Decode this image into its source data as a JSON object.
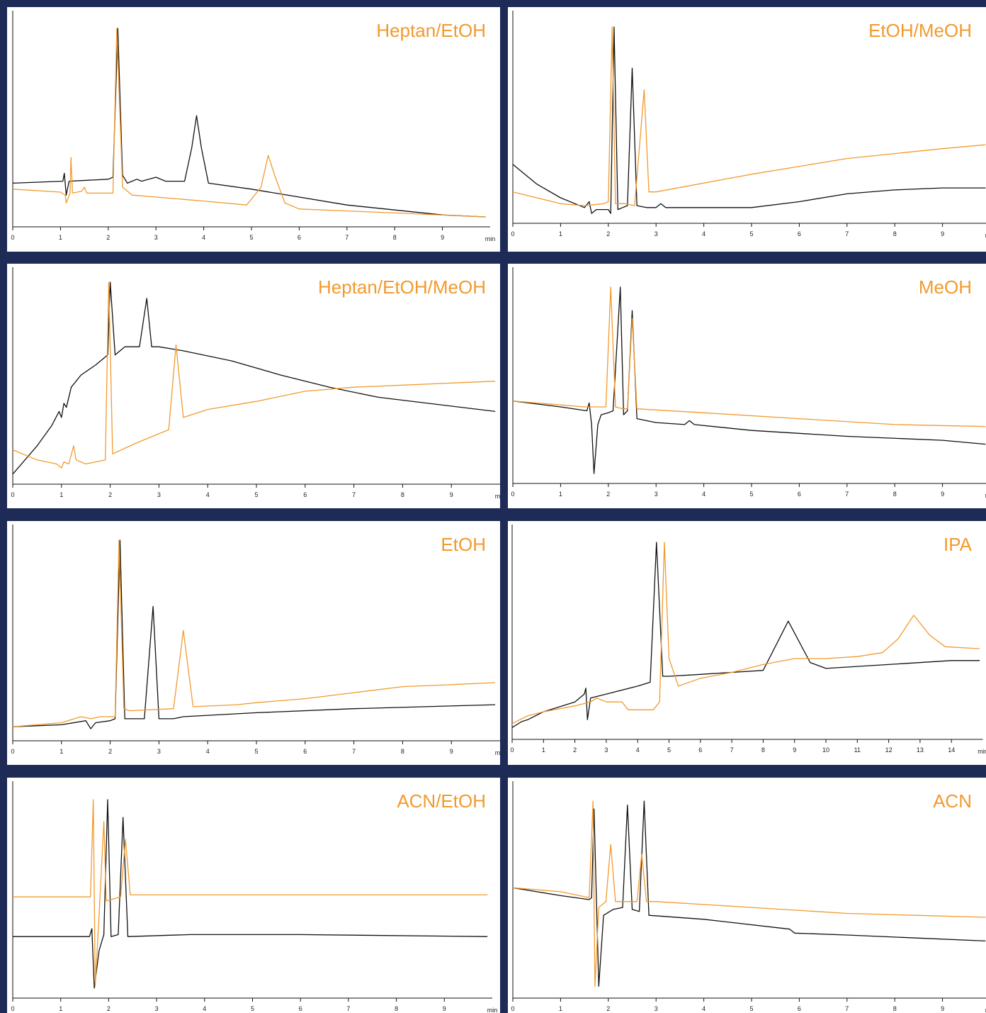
{
  "chart_data": [
    {
      "type": "line",
      "title": "Heptan/EtOH",
      "x_label": "min",
      "xlim": [
        0,
        10
      ],
      "xticks": [
        0,
        1,
        2,
        3,
        4,
        5,
        6,
        7,
        8,
        9
      ],
      "ylim": [
        0,
        100
      ],
      "series": [
        {
          "color": "#111111",
          "x": [
            0,
            1.05,
            1.08,
            1.12,
            1.18,
            2.0,
            2.1,
            2.2,
            2.3,
            2.4,
            2.6,
            2.7,
            3.0,
            3.2,
            3.6,
            3.75,
            3.85,
            3.95,
            4.1,
            5,
            7,
            9,
            9.9
          ],
          "values": [
            22,
            23,
            27,
            16,
            23,
            24,
            25,
            100,
            26,
            22,
            24,
            23,
            25,
            23,
            23,
            40,
            56,
            40,
            22,
            19,
            11,
            6,
            5
          ]
        },
        {
          "color": "#f29a2e",
          "x": [
            0,
            1,
            1.1,
            1.12,
            1.2,
            1.22,
            1.25,
            1.45,
            1.5,
            1.55,
            2.0,
            2.1,
            2.18,
            2.3,
            2.5,
            3,
            4,
            4.9,
            5.2,
            5.35,
            5.5,
            5.7,
            6,
            8,
            9.9
          ],
          "values": [
            19,
            17.5,
            16,
            12,
            17,
            35,
            17,
            18,
            20,
            17,
            17,
            17,
            100,
            20,
            16,
            15,
            13,
            11,
            20,
            36,
            25,
            12,
            9,
            7,
            5
          ]
        }
      ]
    },
    {
      "type": "line",
      "title": "EtOH/MeOH",
      "x_label": "min",
      "xlim": [
        0,
        10
      ],
      "xticks": [
        0,
        1,
        2,
        3,
        4,
        5,
        6,
        7,
        8,
        9
      ],
      "ylim": [
        0,
        100
      ],
      "series": [
        {
          "color": "#111111",
          "x": [
            0,
            0.5,
            1,
            1.5,
            1.6,
            1.65,
            1.75,
            2.0,
            2.05,
            2.12,
            2.2,
            2.3,
            2.4,
            2.5,
            2.6,
            2.8,
            3.0,
            3.1,
            3.2,
            4,
            5,
            6,
            7,
            8,
            9,
            9.9
          ],
          "values": [
            30,
            20,
            13,
            8,
            11,
            5,
            7,
            7,
            5,
            100,
            7,
            8,
            9,
            79,
            9,
            8,
            8,
            10,
            8,
            8,
            8,
            11,
            15,
            17,
            18,
            18
          ]
        },
        {
          "color": "#f29a2e",
          "x": [
            0,
            1,
            1.5,
            1.9,
            2.0,
            2.08,
            2.15,
            2.35,
            2.55,
            2.75,
            2.85,
            3,
            5,
            7,
            9,
            9.9
          ],
          "values": [
            16,
            10,
            9,
            10,
            11,
            100,
            10,
            10,
            9,
            68,
            16,
            16,
            25,
            33,
            38,
            40
          ]
        }
      ]
    },
    {
      "type": "line",
      "title": "Heptan/EtOH/MeOH",
      "x_label": "min",
      "xlim": [
        0,
        10
      ],
      "xticks": [
        0,
        1,
        2,
        3,
        4,
        5,
        6,
        7,
        8,
        9
      ],
      "ylim": [
        0,
        100
      ],
      "series": [
        {
          "color": "#111111",
          "x": [
            0,
            0.5,
            0.8,
            0.95,
            1.0,
            1.05,
            1.1,
            1.2,
            1.4,
            1.7,
            1.95,
            2.0,
            2.1,
            2.3,
            2.6,
            2.75,
            2.85,
            3,
            3.5,
            4.5,
            5.5,
            6.5,
            7.5,
            9.9
          ],
          "values": [
            5,
            19,
            29,
            36,
            33,
            40,
            38,
            48,
            54,
            59,
            64,
            100,
            64,
            68,
            68,
            92,
            68,
            68,
            66,
            61,
            54,
            48,
            43,
            36
          ]
        },
        {
          "color": "#f29a2e",
          "x": [
            0,
            0.5,
            0.9,
            1.0,
            1.05,
            1.15,
            1.25,
            1.3,
            1.5,
            1.9,
            1.97,
            2.05,
            2.5,
            3.2,
            3.35,
            3.5,
            4,
            5,
            6,
            7,
            8,
            9.9
          ],
          "values": [
            17,
            12,
            10,
            8,
            11,
            10,
            19,
            12,
            10,
            12,
            100,
            15,
            20,
            27,
            69,
            33,
            37,
            41,
            46,
            48,
            49,
            51
          ]
        }
      ]
    },
    {
      "type": "line",
      "title": "MeOH",
      "x_label": "min",
      "xlim": [
        0,
        10
      ],
      "xticks": [
        0,
        1,
        2,
        3,
        4,
        5,
        6,
        7,
        8,
        9
      ],
      "ylim": [
        0,
        100
      ],
      "series": [
        {
          "color": "#111111",
          "x": [
            0,
            1,
            1.55,
            1.6,
            1.65,
            1.7,
            1.78,
            1.85,
            2.0,
            2.1,
            2.25,
            2.32,
            2.4,
            2.5,
            2.6,
            3,
            3.6,
            3.7,
            3.8,
            5,
            7,
            9,
            9.9
          ],
          "values": [
            42,
            39,
            37,
            41,
            30,
            5,
            30,
            35,
            36,
            37,
            100,
            35,
            37,
            88,
            33,
            31,
            30,
            32,
            30,
            27,
            24,
            22,
            20
          ]
        },
        {
          "color": "#f29a2e",
          "x": [
            0,
            1,
            1.5,
            1.95,
            2.05,
            2.15,
            2.3,
            2.4,
            2.5,
            2.6,
            4,
            6,
            8,
            9.9
          ],
          "values": [
            42,
            40,
            39,
            39,
            100,
            39,
            38,
            38,
            84,
            38,
            36,
            33,
            30,
            29
          ]
        }
      ]
    },
    {
      "type": "line",
      "title": "EtOH",
      "x_label": "min",
      "xlim": [
        0,
        10
      ],
      "xticks": [
        0,
        1,
        2,
        3,
        4,
        5,
        6,
        7,
        8,
        9
      ],
      "ylim": [
        0,
        100
      ],
      "series": [
        {
          "color": "#111111",
          "x": [
            0,
            1,
            1.5,
            1.6,
            1.7,
            2.0,
            2.1,
            2.2,
            2.3,
            2.7,
            2.88,
            3.0,
            3.3,
            3.5,
            5,
            7,
            9.9
          ],
          "values": [
            7,
            8,
            10,
            6,
            9,
            10,
            11,
            100,
            11,
            11,
            67,
            11,
            11,
            12,
            14,
            16,
            18
          ]
        },
        {
          "color": "#f29a2e",
          "x": [
            0,
            1,
            1.4,
            1.6,
            1.8,
            2.1,
            2.18,
            2.28,
            2.4,
            3.3,
            3.5,
            3.7,
            4.6,
            5,
            6,
            7,
            8,
            9,
            9.9
          ],
          "values": [
            7,
            9,
            12,
            11,
            12,
            12,
            100,
            16,
            15,
            16,
            55,
            17,
            18,
            19,
            21,
            24,
            27,
            28,
            29
          ]
        }
      ]
    },
    {
      "type": "line",
      "title": "IPA",
      "x_label": "min",
      "xlim": [
        0,
        15
      ],
      "xticks": [
        0,
        1,
        2,
        3,
        4,
        5,
        6,
        7,
        8,
        9,
        10,
        11,
        12,
        13,
        14
      ],
      "ylim": [
        0,
        100
      ],
      "series": [
        {
          "color": "#111111",
          "x": [
            0,
            0.3,
            0.5,
            1,
            2,
            2.3,
            2.35,
            2.4,
            2.5,
            3,
            4,
            4.4,
            4.6,
            4.8,
            5,
            6,
            7,
            8,
            8.8,
            9.5,
            10,
            12,
            14,
            14.9
          ],
          "values": [
            6,
            9,
            10,
            14,
            19,
            23,
            26,
            10,
            21,
            23,
            27,
            29,
            100,
            32,
            32,
            33,
            34,
            35,
            60,
            39,
            36,
            38,
            40,
            40
          ]
        },
        {
          "color": "#f29a2e",
          "x": [
            0,
            0.5,
            1,
            2,
            2.5,
            2.7,
            3,
            3.5,
            3.7,
            4.5,
            4.7,
            4.85,
            5,
            5.3,
            6,
            7,
            8,
            9,
            10,
            11,
            11.8,
            12.3,
            12.8,
            13.3,
            13.8,
            14.9
          ],
          "values": [
            8,
            12,
            14,
            17,
            19,
            21,
            19,
            19,
            15,
            15,
            19,
            100,
            41,
            27,
            31,
            34,
            38,
            41,
            41,
            42,
            44,
            51,
            63,
            53,
            47,
            46
          ]
        }
      ]
    },
    {
      "type": "line",
      "title": "ACN/EtOH",
      "x_label": "min",
      "xlim": [
        0,
        10
      ],
      "xticks": [
        0,
        1,
        2,
        3,
        4,
        5,
        6,
        7,
        8,
        9
      ],
      "ylim": [
        0,
        100
      ],
      "series": [
        {
          "color": "#111111",
          "x": [
            0,
            1.6,
            1.65,
            1.7,
            1.8,
            1.9,
            1.98,
            2.05,
            2.2,
            2.3,
            2.4,
            3.7,
            6,
            9.9
          ],
          "values": [
            31,
            31,
            35,
            5,
            24,
            32,
            100,
            31,
            32,
            91,
            31,
            32,
            32,
            31
          ]
        },
        {
          "color": "#f29a2e",
          "x": [
            0,
            1.62,
            1.68,
            1.72,
            1.8,
            1.9,
            1.95,
            2.25,
            2.35,
            2.45,
            9.9
          ],
          "values": [
            51,
            51,
            100,
            6,
            42,
            89,
            49,
            51,
            80,
            52,
            52
          ]
        }
      ]
    },
    {
      "type": "line",
      "title": "ACN",
      "x_label": "min",
      "xlim": [
        0,
        10
      ],
      "xticks": [
        0,
        1,
        2,
        3,
        4,
        5,
        6,
        7,
        8,
        9
      ],
      "ylim": [
        0,
        100
      ],
      "series": [
        {
          "color": "#111111",
          "x": [
            0,
            1,
            1.6,
            1.65,
            1.7,
            1.8,
            1.9,
            2.1,
            2.3,
            2.4,
            2.5,
            2.65,
            2.75,
            2.85,
            4,
            5.8,
            5.9,
            7,
            9.9
          ],
          "values": [
            56,
            52,
            50,
            51,
            96,
            6,
            42,
            45,
            46,
            98,
            45,
            44,
            100,
            42,
            40,
            35,
            33,
            32,
            29
          ]
        },
        {
          "color": "#f29a2e",
          "x": [
            0,
            1,
            1.6,
            1.68,
            1.72,
            1.8,
            1.95,
            2.05,
            2.15,
            2.6,
            2.7,
            2.8,
            3,
            5,
            7,
            9.9
          ],
          "values": [
            56,
            54,
            51,
            100,
            6,
            46,
            49,
            78,
            49,
            49,
            73,
            49,
            49,
            46,
            43,
            41
          ]
        }
      ]
    }
  ]
}
